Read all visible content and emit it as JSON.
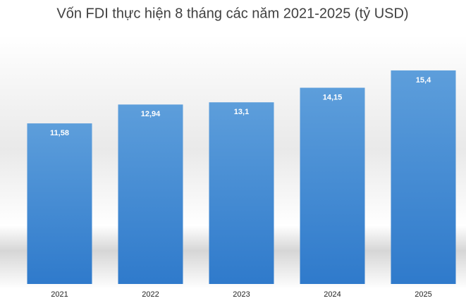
{
  "chart_data": {
    "type": "bar",
    "title": "Vốn FDI thực hiện 8 tháng các năm 2021-2025 (tỷ USD)",
    "categories": [
      "2021",
      "2022",
      "2023",
      "2024",
      "2025"
    ],
    "values": [
      11.58,
      12.94,
      13.1,
      14.15,
      15.4
    ],
    "value_labels": [
      "11,58",
      "12,94",
      "13,1",
      "14,15",
      "15,4"
    ],
    "color": "#4a8fd4"
  }
}
